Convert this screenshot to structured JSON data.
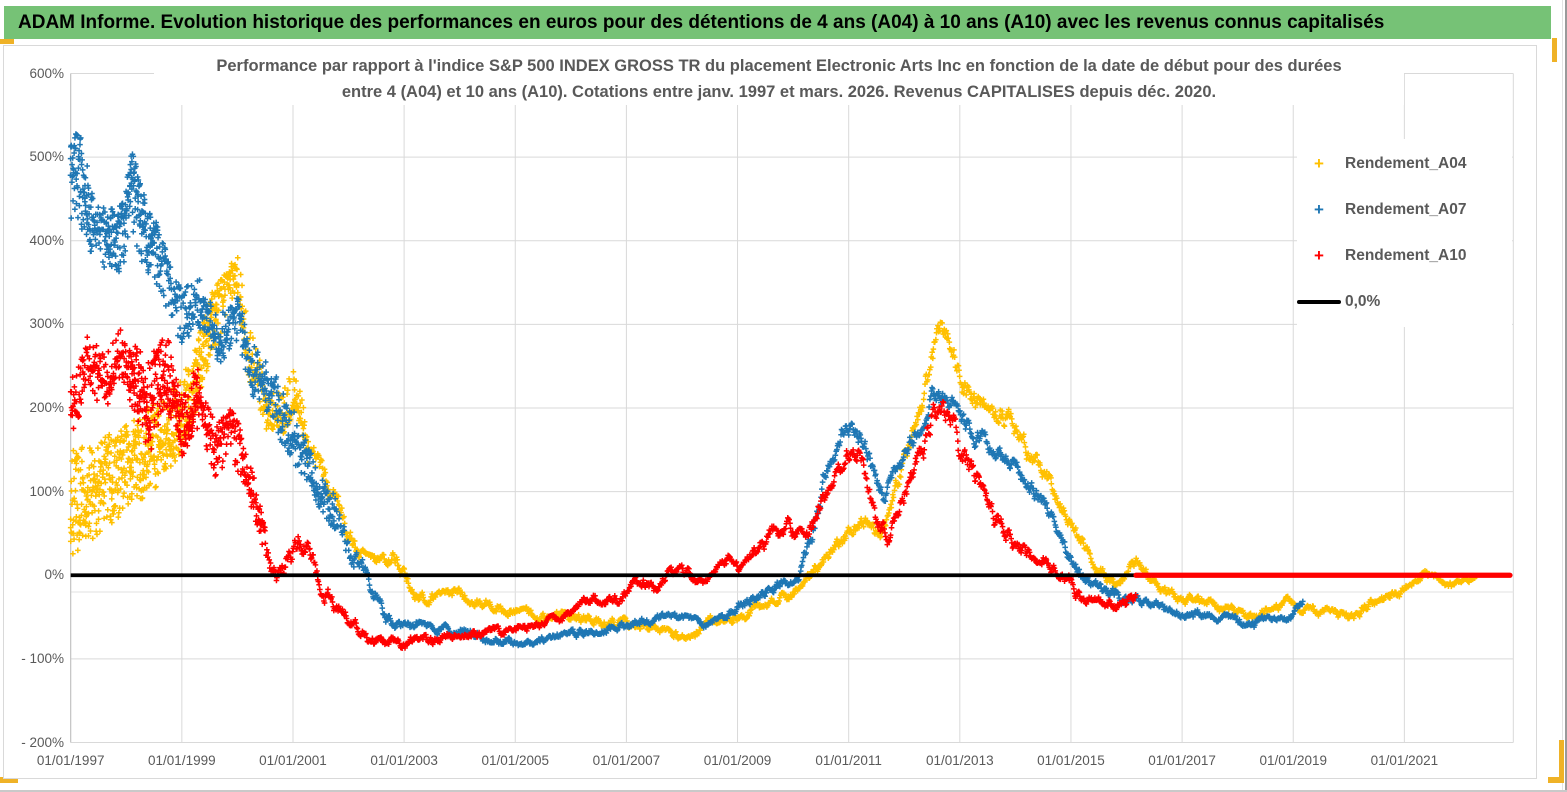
{
  "header": {
    "title": "ADAM Informe. Evolution historique des performances en euros pour des détentions de 4 ans (A04) à 10 ans (A10) avec les revenus connus capitalisés",
    "bg_color": "#76C276",
    "frame_color": "#EFB227"
  },
  "chart_data": {
    "type": "scatter",
    "title_lines": [
      "Performance par rapport à l'indice S&P 500 INDEX GROSS TR  du placement Electronic Arts Inc en fonction de la date de début pour des durées",
      "entre 4 (A04) et 10 ans (A10). Cotations entre janv. 1997 et mars. 2026. Revenus CAPITALISES depuis déc. 2020."
    ],
    "xlim": [
      1997,
      2022.96
    ],
    "ylim": [
      -200,
      600
    ],
    "grid": true,
    "grid_color": "#d9d9d9",
    "sub_zero_line": -20,
    "x_ticks": [
      {
        "label": "01/01/1997",
        "t": 1997
      },
      {
        "label": "01/01/1999",
        "t": 1999
      },
      {
        "label": "01/01/2001",
        "t": 2001
      },
      {
        "label": "01/01/2003",
        "t": 2003
      },
      {
        "label": "01/01/2005",
        "t": 2005
      },
      {
        "label": "01/01/2007",
        "t": 2007
      },
      {
        "label": "01/01/2009",
        "t": 2009
      },
      {
        "label": "01/01/2011",
        "t": 2011
      },
      {
        "label": "01/01/2013",
        "t": 2013
      },
      {
        "label": "01/01/2015",
        "t": 2015
      },
      {
        "label": "01/01/2017",
        "t": 2017
      },
      {
        "label": "01/01/2019",
        "t": 2019
      },
      {
        "label": "01/01/2021",
        "t": 2021
      }
    ],
    "y_ticks": [
      {
        "label": "600%",
        "v": 600
      },
      {
        "label": "500%",
        "v": 500
      },
      {
        "label": "400%",
        "v": 400
      },
      {
        "label": "300%",
        "v": 300
      },
      {
        "label": "200%",
        "v": 200
      },
      {
        "label": "100%",
        "v": 100
      },
      {
        "label": "0%",
        "v": 0
      },
      {
        "label": "- 100%",
        "v": -100
      },
      {
        "label": "- 200%",
        "v": -200
      }
    ],
    "legend": [
      {
        "label": "Rendement_A04",
        "color": "#FFC000",
        "marker": "plus"
      },
      {
        "label": "Rendement_A07",
        "color": "#1F77B4",
        "marker": "plus"
      },
      {
        "label": "Rendement_A10",
        "color": "#FF0000",
        "marker": "plus"
      },
      {
        "label": "0,0%",
        "color": "#000000",
        "marker": "line"
      }
    ],
    "zero_line": {
      "value": 0,
      "color": "#000000",
      "label": "0,0%"
    },
    "sampling": {
      "step_years": 0.0128,
      "seed": 987654
    },
    "series": [
      {
        "name": "Rendement_A04",
        "color": "#FFC000",
        "marker": "plus",
        "keypoints": [
          [
            1997.0,
            90,
            70
          ],
          [
            1997.5,
            105,
            60
          ],
          [
            1998.0,
            130,
            55
          ],
          [
            1998.5,
            155,
            55
          ],
          [
            1999.0,
            190,
            45
          ],
          [
            1999.5,
            290,
            45
          ],
          [
            2000.0,
            360,
            30
          ],
          [
            2000.2,
            270,
            40
          ],
          [
            2000.5,
            200,
            35
          ],
          [
            2000.8,
            195,
            30
          ],
          [
            2001.05,
            225,
            28
          ],
          [
            2001.3,
            140,
            25
          ],
          [
            2001.6,
            108,
            20
          ],
          [
            2001.85,
            75,
            20
          ],
          [
            2002.1,
            35,
            15
          ],
          [
            2002.3,
            15,
            12
          ],
          [
            2002.55,
            12,
            10
          ],
          [
            2002.8,
            22,
            12
          ],
          [
            2003.05,
            -8,
            10
          ],
          [
            2003.25,
            -26,
            8
          ],
          [
            2003.6,
            -28,
            9
          ],
          [
            2004.0,
            -24,
            9
          ],
          [
            2004.5,
            -34,
            8
          ],
          [
            2005.0,
            -44,
            8
          ],
          [
            2005.5,
            -48,
            8
          ],
          [
            2006.0,
            -52,
            8
          ],
          [
            2006.5,
            -55,
            8
          ],
          [
            2007.0,
            -58,
            8
          ],
          [
            2007.5,
            -66,
            7
          ],
          [
            2008.1,
            -76,
            6
          ],
          [
            2008.45,
            -56,
            8
          ],
          [
            2009.0,
            -52,
            8
          ],
          [
            2009.5,
            -32,
            8
          ],
          [
            2010.0,
            -26,
            8
          ],
          [
            2010.35,
            0,
            9
          ],
          [
            2010.7,
            28,
            10
          ],
          [
            2011.0,
            52,
            12
          ],
          [
            2011.3,
            62,
            12
          ],
          [
            2011.6,
            50,
            12
          ],
          [
            2011.9,
            110,
            15
          ],
          [
            2012.2,
            175,
            18
          ],
          [
            2012.45,
            235,
            20
          ],
          [
            2012.65,
            295,
            18
          ],
          [
            2012.85,
            280,
            20
          ],
          [
            2013.05,
            230,
            20
          ],
          [
            2013.3,
            200,
            18
          ],
          [
            2013.6,
            205,
            18
          ],
          [
            2013.95,
            185,
            18
          ],
          [
            2014.3,
            140,
            15
          ],
          [
            2014.6,
            110,
            12
          ],
          [
            2014.9,
            80,
            12
          ],
          [
            2015.1,
            45,
            12
          ],
          [
            2015.35,
            22,
            10
          ],
          [
            2015.6,
            0,
            8
          ],
          [
            2015.9,
            -10,
            8
          ],
          [
            2016.15,
            18,
            10
          ],
          [
            2016.45,
            -2,
            8
          ],
          [
            2016.7,
            -18,
            8
          ],
          [
            2017.0,
            -26,
            8
          ],
          [
            2017.4,
            -32,
            8
          ],
          [
            2017.9,
            -42,
            7
          ],
          [
            2018.3,
            -48,
            7
          ],
          [
            2018.6,
            -40,
            7
          ],
          [
            2018.9,
            -32,
            7
          ],
          [
            2019.2,
            -40,
            7
          ],
          [
            2019.6,
            -45,
            7
          ],
          [
            2020.0,
            -52,
            6
          ],
          [
            2020.3,
            -40,
            8
          ],
          [
            2020.6,
            -30,
            8
          ],
          [
            2020.9,
            -22,
            7
          ],
          [
            2021.1,
            -14,
            6
          ],
          [
            2021.35,
            4,
            6
          ],
          [
            2021.6,
            -6,
            5
          ],
          [
            2021.9,
            -12,
            5
          ],
          [
            2022.1,
            -8,
            5
          ],
          [
            2022.3,
            -4,
            4
          ]
        ]
      },
      {
        "name": "Rendement_A07",
        "color": "#1F77B4",
        "marker": "plus",
        "keypoints": [
          [
            1997.0,
            480,
            55
          ],
          [
            1997.2,
            465,
            60
          ],
          [
            1997.4,
            420,
            40
          ],
          [
            1997.6,
            400,
            40
          ],
          [
            1997.85,
            395,
            45
          ],
          [
            1998.1,
            455,
            55
          ],
          [
            1998.35,
            405,
            45
          ],
          [
            1998.6,
            375,
            40
          ],
          [
            1999.0,
            305,
            40
          ],
          [
            1999.3,
            330,
            35
          ],
          [
            1999.6,
            285,
            35
          ],
          [
            2000.0,
            300,
            35
          ],
          [
            2000.3,
            250,
            40
          ],
          [
            2000.6,
            215,
            35
          ],
          [
            2001.0,
            165,
            40
          ],
          [
            2001.4,
            110,
            30
          ],
          [
            2001.8,
            70,
            25
          ],
          [
            2002.1,
            25,
            20
          ],
          [
            2002.4,
            -22,
            15
          ],
          [
            2002.75,
            -55,
            9
          ],
          [
            2003.0,
            -58,
            8
          ],
          [
            2003.5,
            -66,
            7
          ],
          [
            2004.0,
            -64,
            7
          ],
          [
            2004.5,
            -78,
            6
          ],
          [
            2005.0,
            -81,
            6
          ],
          [
            2005.4,
            -80,
            6
          ],
          [
            2005.8,
            -73,
            6
          ],
          [
            2006.2,
            -67,
            6
          ],
          [
            2006.6,
            -64,
            6
          ],
          [
            2007.0,
            -60,
            6
          ],
          [
            2007.4,
            -55,
            6
          ],
          [
            2007.8,
            -49,
            6
          ],
          [
            2008.1,
            -54,
            6
          ],
          [
            2008.5,
            -59,
            6
          ],
          [
            2008.8,
            -52,
            7
          ],
          [
            2009.15,
            -30,
            8
          ],
          [
            2009.5,
            -18,
            8
          ],
          [
            2009.8,
            -8,
            8
          ],
          [
            2010.1,
            2,
            9
          ],
          [
            2010.35,
            45,
            14
          ],
          [
            2010.6,
            125,
            16
          ],
          [
            2010.85,
            172,
            15
          ],
          [
            2011.05,
            180,
            15
          ],
          [
            2011.25,
            168,
            15
          ],
          [
            2011.5,
            112,
            15
          ],
          [
            2011.65,
            88,
            13
          ],
          [
            2011.9,
            130,
            15
          ],
          [
            2012.2,
            172,
            15
          ],
          [
            2012.5,
            210,
            15
          ],
          [
            2012.7,
            222,
            15
          ],
          [
            2012.95,
            200,
            15
          ],
          [
            2013.3,
            162,
            15
          ],
          [
            2013.7,
            150,
            13
          ],
          [
            2014.0,
            135,
            12
          ],
          [
            2014.4,
            92,
            11
          ],
          [
            2014.8,
            55,
            10
          ],
          [
            2015.05,
            10,
            10
          ],
          [
            2015.35,
            -12,
            8
          ],
          [
            2015.7,
            -20,
            8
          ],
          [
            2016.0,
            -28,
            8
          ],
          [
            2016.5,
            -35,
            7
          ],
          [
            2017.0,
            -45,
            7
          ],
          [
            2017.5,
            -48,
            6
          ],
          [
            2018.0,
            -55,
            6
          ],
          [
            2018.3,
            -60,
            6
          ],
          [
            2018.55,
            -48,
            6
          ],
          [
            2018.8,
            -56,
            6
          ],
          [
            2019.0,
            -45,
            6
          ],
          [
            2019.17,
            -30,
            5
          ]
        ]
      },
      {
        "name": "Rendement_A10",
        "color": "#FF0000",
        "marker": "plus",
        "keypoints": [
          [
            1997.0,
            200,
            40
          ],
          [
            1997.3,
            255,
            40
          ],
          [
            1997.6,
            230,
            40
          ],
          [
            1997.9,
            265,
            35
          ],
          [
            1998.2,
            230,
            45
          ],
          [
            1998.45,
            200,
            65
          ],
          [
            1998.7,
            250,
            45
          ],
          [
            1999.0,
            185,
            45
          ],
          [
            1999.3,
            210,
            40
          ],
          [
            1999.6,
            150,
            35
          ],
          [
            1999.9,
            170,
            35
          ],
          [
            2000.2,
            120,
            30
          ],
          [
            2000.5,
            40,
            25
          ],
          [
            2000.75,
            -10,
            20
          ],
          [
            2001.0,
            28,
            20
          ],
          [
            2001.2,
            38,
            18
          ],
          [
            2001.5,
            -15,
            15
          ],
          [
            2001.8,
            -35,
            12
          ],
          [
            2002.1,
            -55,
            10
          ],
          [
            2002.4,
            -78,
            8
          ],
          [
            2002.8,
            -81,
            7
          ],
          [
            2003.2,
            -80,
            7
          ],
          [
            2003.6,
            -75,
            7
          ],
          [
            2004.0,
            -71,
            7
          ],
          [
            2004.4,
            -69,
            7
          ],
          [
            2004.8,
            -66,
            6
          ],
          [
            2005.2,
            -61,
            6
          ],
          [
            2005.6,
            -55,
            6
          ],
          [
            2006.0,
            -47,
            6
          ],
          [
            2006.36,
            -26,
            8
          ],
          [
            2006.6,
            -29,
            8
          ],
          [
            2006.9,
            -34,
            8
          ],
          [
            2007.1,
            -12,
            8
          ],
          [
            2007.3,
            -6,
            8
          ],
          [
            2007.5,
            -20,
            8
          ],
          [
            2007.75,
            4,
            8
          ],
          [
            2008.0,
            10,
            8
          ],
          [
            2008.2,
            -6,
            8
          ],
          [
            2008.4,
            -14,
            8
          ],
          [
            2008.6,
            12,
            8
          ],
          [
            2008.85,
            20,
            8
          ],
          [
            2009.05,
            2,
            8
          ],
          [
            2009.3,
            25,
            10
          ],
          [
            2009.6,
            48,
            12
          ],
          [
            2009.9,
            62,
            12
          ],
          [
            2010.2,
            48,
            12
          ],
          [
            2010.5,
            82,
            15
          ],
          [
            2010.8,
            132,
            15
          ],
          [
            2011.0,
            150,
            15
          ],
          [
            2011.2,
            140,
            15
          ],
          [
            2011.5,
            62,
            15
          ],
          [
            2011.7,
            46,
            12
          ],
          [
            2011.95,
            95,
            15
          ],
          [
            2012.25,
            140,
            18
          ],
          [
            2012.5,
            185,
            20
          ],
          [
            2012.7,
            200,
            20
          ],
          [
            2012.9,
            172,
            20
          ],
          [
            2013.2,
            120,
            18
          ],
          [
            2013.5,
            82,
            15
          ],
          [
            2013.8,
            46,
            15
          ],
          [
            2014.1,
            26,
            12
          ],
          [
            2014.5,
            18,
            10
          ],
          [
            2014.8,
            5,
            10
          ],
          [
            2015.1,
            -20,
            10
          ],
          [
            2015.4,
            -30,
            8
          ],
          [
            2015.7,
            -32,
            8
          ],
          [
            2016.0,
            -35,
            8
          ],
          [
            2016.17,
            -28,
            8
          ]
        ],
        "flat_segment": {
          "from": 2016.17,
          "to": 2022.9,
          "value": 0
        }
      }
    ]
  }
}
